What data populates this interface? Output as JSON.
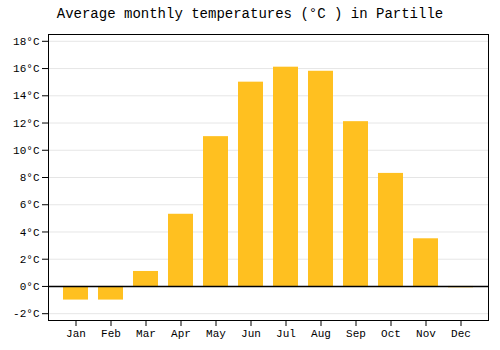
{
  "chart_data": {
    "type": "bar",
    "title": "Average monthly temperatures (°C ) in Partille",
    "categories": [
      "Jan",
      "Feb",
      "Mar",
      "Apr",
      "May",
      "Jun",
      "Jul",
      "Aug",
      "Sep",
      "Oct",
      "Nov",
      "Dec"
    ],
    "values": [
      -1.0,
      -1.0,
      1.1,
      5.3,
      11.0,
      15.0,
      16.1,
      15.8,
      12.1,
      8.3,
      3.5,
      -0.1
    ],
    "color": "#FFC020",
    "ylim": [
      -2.5,
      18.5
    ],
    "yticks": [
      {
        "value": -2,
        "label": "-2°C"
      },
      {
        "value": 0,
        "label": "0°C"
      },
      {
        "value": 2,
        "label": "2°C"
      },
      {
        "value": 4,
        "label": "4°C"
      },
      {
        "value": 6,
        "label": "6°C"
      },
      {
        "value": 8,
        "label": "8°C"
      },
      {
        "value": 10,
        "label": "10°C"
      },
      {
        "value": 12,
        "label": "12°C"
      },
      {
        "value": 14,
        "label": "14°C"
      },
      {
        "value": 16,
        "label": "16°C"
      },
      {
        "value": 18,
        "label": "18°C"
      }
    ],
    "grid": true
  }
}
